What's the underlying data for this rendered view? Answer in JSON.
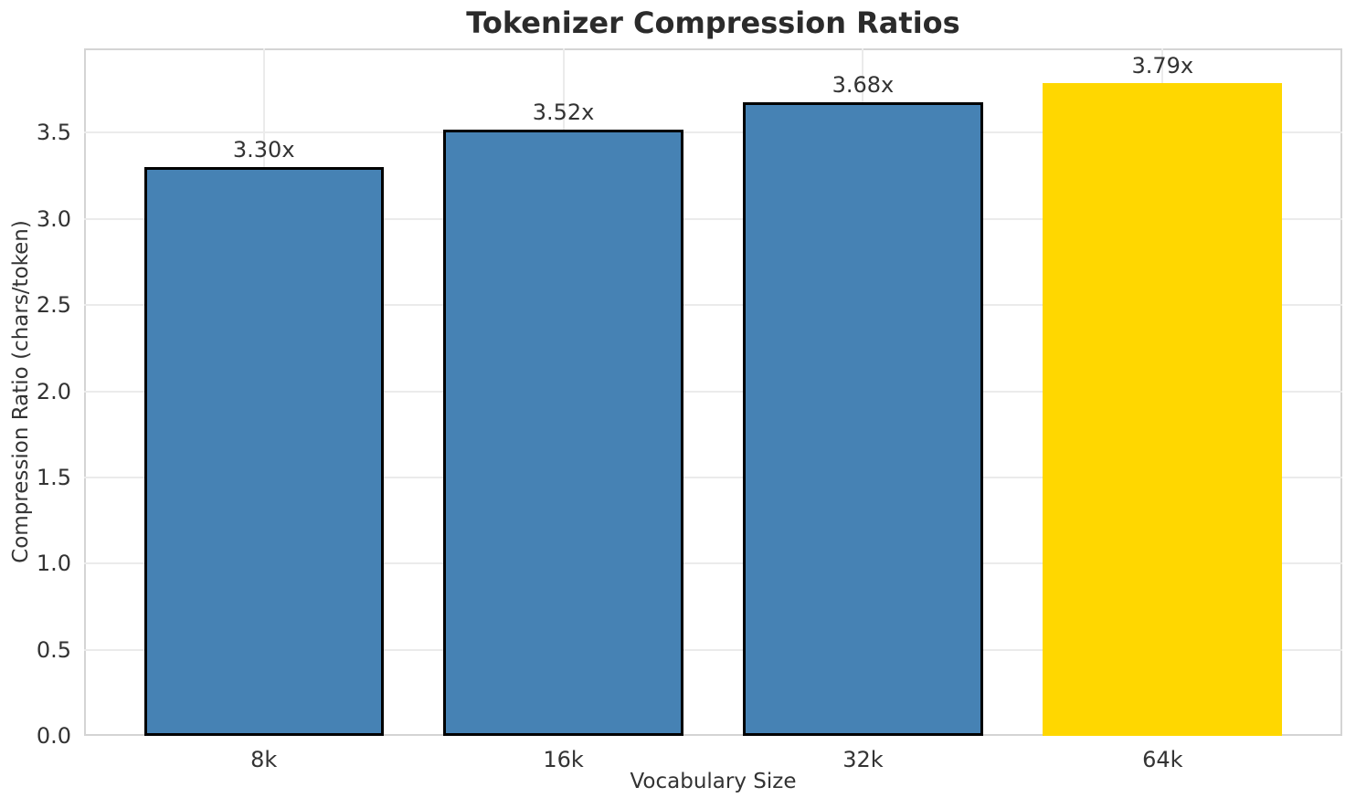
{
  "chart_data": {
    "type": "bar",
    "title": "Tokenizer Compression Ratios",
    "xlabel": "Vocabulary Size",
    "ylabel": "Compression Ratio (chars/token)",
    "categories": [
      "8k",
      "16k",
      "32k",
      "64k"
    ],
    "values": [
      3.3,
      3.52,
      3.68,
      3.79
    ],
    "bar_labels": [
      "3.30x",
      "3.52x",
      "3.68x",
      "3.79x"
    ],
    "yticks": [
      0.0,
      0.5,
      1.0,
      1.5,
      2.0,
      2.5,
      3.0,
      3.5
    ],
    "ytick_labels": [
      "0.0",
      "0.5",
      "1.0",
      "1.5",
      "2.0",
      "2.5",
      "3.0",
      "3.5"
    ],
    "ylim": [
      0,
      3.99
    ],
    "grid": true,
    "legend": "none",
    "bar_colors": [
      "#4682B4",
      "#4682B4",
      "#4682B4",
      "#FFD700"
    ],
    "bar_edge_colors": [
      "#000000",
      "#000000",
      "#000000",
      "none"
    ],
    "highlight_index": 3,
    "grid_color": "#ebebeb",
    "spine_color": "#d4d4d4",
    "text_color": "#333333",
    "title_color": "#2b2b2b"
  }
}
